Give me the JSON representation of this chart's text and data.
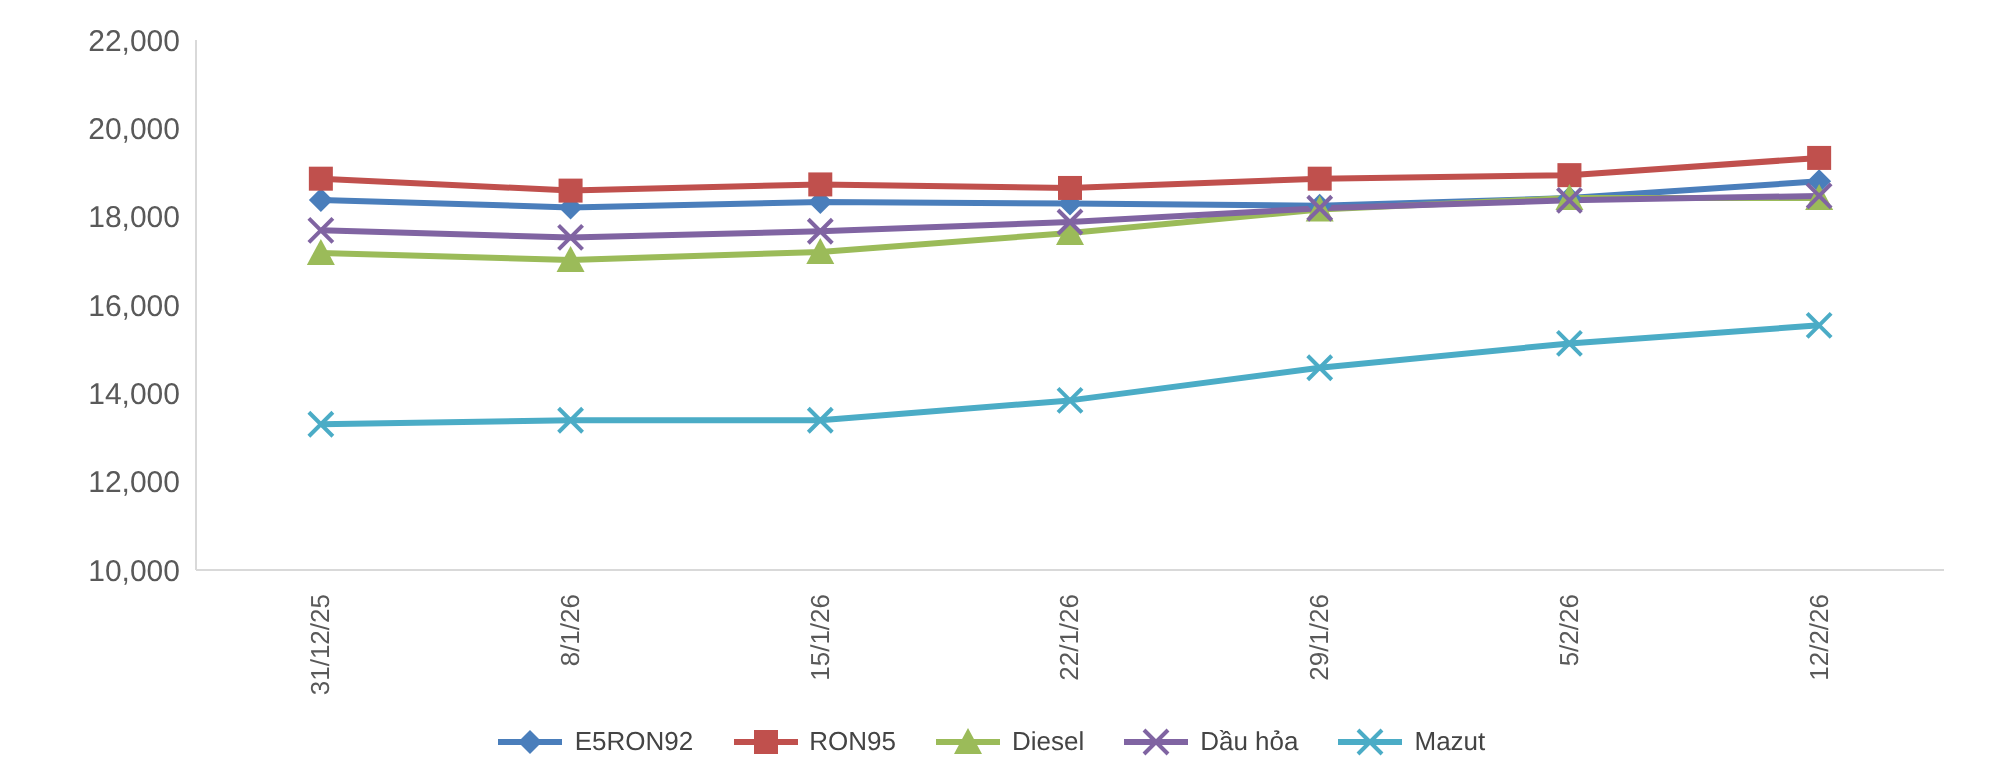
{
  "chart_data": {
    "type": "line",
    "categories": [
      "31/12/25",
      "8/1/26",
      "15/1/26",
      "22/1/26",
      "29/1/26",
      "5/2/26",
      "12/2/26"
    ],
    "series": [
      {
        "name": "E5RON92",
        "color": "#4a7ebb",
        "marker": "diamond",
        "values": [
          18380,
          18210,
          18330,
          18300,
          18250,
          18420,
          18800
        ]
      },
      {
        "name": "RON95",
        "color": "#c0504d",
        "marker": "square",
        "values": [
          18860,
          18590,
          18730,
          18650,
          18860,
          18940,
          19330
        ]
      },
      {
        "name": "Diesel",
        "color": "#9bbb59",
        "marker": "triangle",
        "values": [
          17180,
          17020,
          17200,
          17630,
          18160,
          18420,
          18420
        ]
      },
      {
        "name": "Dầu hỏa",
        "color": "#8064a2",
        "marker": "cross",
        "values": [
          17690,
          17530,
          17670,
          17880,
          18190,
          18370,
          18470
        ]
      },
      {
        "name": "Mazut",
        "color": "#4bacc6",
        "marker": "cross",
        "values": [
          13300,
          13390,
          13390,
          13840,
          14580,
          15130,
          15540
        ]
      }
    ],
    "ylim": [
      10000,
      22000
    ],
    "yticks": [
      {
        "value": 10000,
        "label": "10,000"
      },
      {
        "value": 12000,
        "label": "12,000"
      },
      {
        "value": 14000,
        "label": "14,000"
      },
      {
        "value": 16000,
        "label": "16,000"
      },
      {
        "value": 18000,
        "label": "18,000"
      },
      {
        "value": 20000,
        "label": "20,000"
      },
      {
        "value": 22000,
        "label": "22,000"
      }
    ],
    "grid": false,
    "legend": "bottom"
  }
}
